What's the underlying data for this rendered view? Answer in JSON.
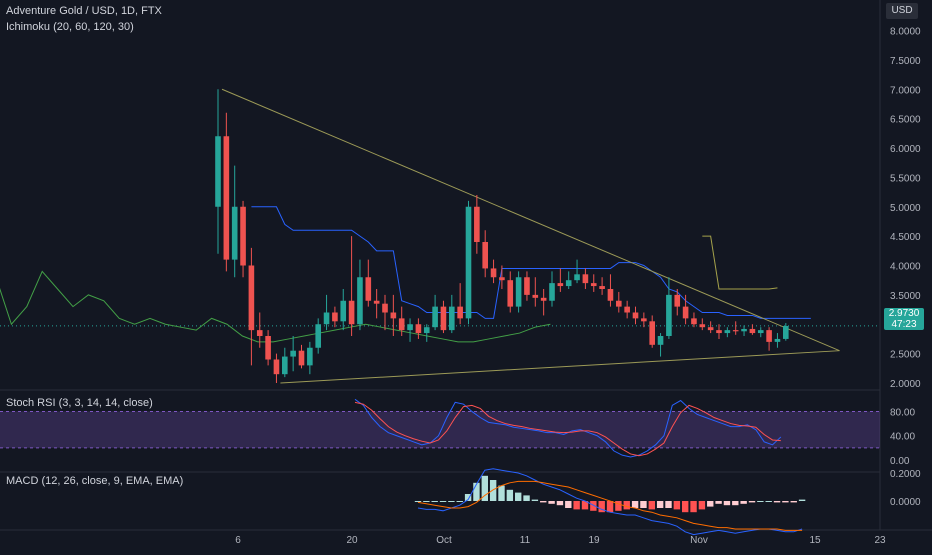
{
  "header": {
    "symbol_title": "Adventure Gold / USD, 1D, FTX",
    "indicator": "Ichimoku (20, 60, 120, 30)",
    "currency": "USD"
  },
  "price_badge": {
    "price": "2.9730",
    "countdown": "47:23"
  },
  "colors": {
    "background": "#131722",
    "up": "#26a69a",
    "down": "#ef5350",
    "ichimoku_conversion": "#2962ff",
    "ichimoku_lagging": "#43a047",
    "ichimoku_span": "#a5a24b",
    "trendline": "#9c9a57",
    "stoch_k": "#2962ff",
    "stoch_d": "#ff5252",
    "stoch_band": "#7e57c2",
    "macd_line": "#2962ff",
    "signal_line": "#ff6d00",
    "hist_up_strong": "#b2dfdb",
    "hist_down_strong": "#ff5252",
    "hist_down_weak": "#ffcdd2"
  },
  "chart_data": [
    {
      "type": "candlestick",
      "title": "Adventure Gold / USD, 1D, FTX",
      "y_axis_label": "USD",
      "y_ticks": [
        "8.0000",
        "7.5000",
        "7.0000",
        "6.5000",
        "6.0000",
        "5.5000",
        "5.0000",
        "4.5000",
        "4.0000",
        "3.5000",
        "3.0000",
        "2.5000",
        "2.0000"
      ],
      "x_ticks": [
        "6",
        "20",
        "Oct",
        "11",
        "19",
        "Nov",
        "15",
        "23"
      ],
      "ylim": [
        1.75,
        8.1
      ],
      "candles": [
        {
          "date": "Sep 5",
          "o": 5.0,
          "h": 7.0,
          "l": 4.2,
          "c": 6.2
        },
        {
          "date": "Sep 6",
          "o": 6.2,
          "h": 6.6,
          "l": 3.9,
          "c": 4.1
        },
        {
          "date": "Sep 7",
          "o": 4.1,
          "h": 5.7,
          "l": 3.8,
          "c": 5.0
        },
        {
          "date": "Sep 8",
          "o": 5.0,
          "h": 5.1,
          "l": 3.8,
          "c": 4.0
        },
        {
          "date": "Sep 9",
          "o": 4.0,
          "h": 4.3,
          "l": 2.3,
          "c": 2.9
        },
        {
          "date": "Sep 10",
          "o": 2.9,
          "h": 3.2,
          "l": 2.6,
          "c": 2.8
        },
        {
          "date": "Sep 11",
          "o": 2.8,
          "h": 2.9,
          "l": 2.3,
          "c": 2.4
        },
        {
          "date": "Sep 12",
          "o": 2.4,
          "h": 2.5,
          "l": 2.0,
          "c": 2.15
        },
        {
          "date": "Sep 13",
          "o": 2.15,
          "h": 2.6,
          "l": 2.1,
          "c": 2.45
        },
        {
          "date": "Sep 14",
          "o": 2.45,
          "h": 2.8,
          "l": 2.2,
          "c": 2.55
        },
        {
          "date": "Sep 15",
          "o": 2.55,
          "h": 2.65,
          "l": 2.25,
          "c": 2.3
        },
        {
          "date": "Sep 16",
          "o": 2.3,
          "h": 2.7,
          "l": 2.15,
          "c": 2.6
        },
        {
          "date": "Sep 17",
          "o": 2.6,
          "h": 3.1,
          "l": 2.5,
          "c": 3.0
        },
        {
          "date": "Sep 18",
          "o": 3.0,
          "h": 3.5,
          "l": 2.9,
          "c": 3.2
        },
        {
          "date": "Sep 19",
          "o": 3.2,
          "h": 3.3,
          "l": 2.95,
          "c": 3.05
        },
        {
          "date": "Sep 20",
          "o": 3.05,
          "h": 3.6,
          "l": 2.9,
          "c": 3.4
        },
        {
          "date": "Sep 21",
          "o": 3.4,
          "h": 4.5,
          "l": 2.8,
          "c": 3.0
        },
        {
          "date": "Sep 22",
          "o": 3.0,
          "h": 4.1,
          "l": 2.9,
          "c": 3.8
        },
        {
          "date": "Sep 23",
          "o": 3.8,
          "h": 4.1,
          "l": 3.3,
          "c": 3.4
        },
        {
          "date": "Sep 24",
          "o": 3.4,
          "h": 3.6,
          "l": 3.1,
          "c": 3.35
        },
        {
          "date": "Sep 25",
          "o": 3.35,
          "h": 3.5,
          "l": 2.9,
          "c": 3.2
        },
        {
          "date": "Sep 26",
          "o": 3.2,
          "h": 3.5,
          "l": 2.8,
          "c": 3.1
        },
        {
          "date": "Sep 27",
          "o": 3.1,
          "h": 3.3,
          "l": 2.8,
          "c": 2.9
        },
        {
          "date": "Sep 28",
          "o": 2.9,
          "h": 3.1,
          "l": 2.7,
          "c": 3.0
        },
        {
          "date": "Sep 29",
          "o": 3.0,
          "h": 3.1,
          "l": 2.75,
          "c": 2.85
        },
        {
          "date": "Sep 30",
          "o": 2.85,
          "h": 3.0,
          "l": 2.7,
          "c": 2.95
        },
        {
          "date": "Oct 1",
          "o": 2.95,
          "h": 3.5,
          "l": 2.9,
          "c": 3.3
        },
        {
          "date": "Oct 2",
          "o": 3.3,
          "h": 3.4,
          "l": 2.85,
          "c": 2.9
        },
        {
          "date": "Oct 3",
          "o": 2.9,
          "h": 3.5,
          "l": 2.85,
          "c": 3.3
        },
        {
          "date": "Oct 4",
          "o": 3.3,
          "h": 3.7,
          "l": 3.0,
          "c": 3.1
        },
        {
          "date": "Oct 5",
          "o": 3.1,
          "h": 5.1,
          "l": 3.0,
          "c": 5.0
        },
        {
          "date": "Oct 6",
          "o": 5.0,
          "h": 5.2,
          "l": 4.2,
          "c": 4.4
        },
        {
          "date": "Oct 7",
          "o": 4.4,
          "h": 4.6,
          "l": 3.8,
          "c": 3.95
        },
        {
          "date": "Oct 8",
          "o": 3.95,
          "h": 4.1,
          "l": 3.7,
          "c": 3.8
        },
        {
          "date": "Oct 9",
          "o": 3.8,
          "h": 4.0,
          "l": 3.6,
          "c": 3.75
        },
        {
          "date": "Oct 10",
          "o": 3.75,
          "h": 3.9,
          "l": 3.2,
          "c": 3.3
        },
        {
          "date": "Oct 11",
          "o": 3.3,
          "h": 3.9,
          "l": 3.2,
          "c": 3.8
        },
        {
          "date": "Oct 12",
          "o": 3.8,
          "h": 3.9,
          "l": 3.4,
          "c": 3.5
        },
        {
          "date": "Oct 13",
          "o": 3.5,
          "h": 3.8,
          "l": 3.3,
          "c": 3.45
        },
        {
          "date": "Oct 14",
          "o": 3.45,
          "h": 3.6,
          "l": 3.15,
          "c": 3.4
        },
        {
          "date": "Oct 15",
          "o": 3.4,
          "h": 3.9,
          "l": 3.3,
          "c": 3.7
        },
        {
          "date": "Oct 16",
          "o": 3.7,
          "h": 3.95,
          "l": 3.55,
          "c": 3.65
        },
        {
          "date": "Oct 17",
          "o": 3.65,
          "h": 3.9,
          "l": 3.6,
          "c": 3.75
        },
        {
          "date": "Oct 18",
          "o": 3.75,
          "h": 4.1,
          "l": 3.7,
          "c": 3.85
        },
        {
          "date": "Oct 19",
          "o": 3.85,
          "h": 3.95,
          "l": 3.6,
          "c": 3.7
        },
        {
          "date": "Oct 20",
          "o": 3.7,
          "h": 3.85,
          "l": 3.55,
          "c": 3.65
        },
        {
          "date": "Oct 21",
          "o": 3.65,
          "h": 3.8,
          "l": 3.5,
          "c": 3.6
        },
        {
          "date": "Oct 22",
          "o": 3.6,
          "h": 3.85,
          "l": 3.3,
          "c": 3.4
        },
        {
          "date": "Oct 23",
          "o": 3.4,
          "h": 3.55,
          "l": 3.2,
          "c": 3.3
        },
        {
          "date": "Oct 24",
          "o": 3.3,
          "h": 3.4,
          "l": 3.1,
          "c": 3.2
        },
        {
          "date": "Oct 25",
          "o": 3.2,
          "h": 3.3,
          "l": 3.0,
          "c": 3.1
        },
        {
          "date": "Oct 26",
          "o": 3.1,
          "h": 3.2,
          "l": 2.95,
          "c": 3.05
        },
        {
          "date": "Oct 27",
          "o": 3.05,
          "h": 3.15,
          "l": 2.6,
          "c": 2.65
        },
        {
          "date": "Oct 28",
          "o": 2.65,
          "h": 2.85,
          "l": 2.45,
          "c": 2.8
        },
        {
          "date": "Oct 29",
          "o": 2.8,
          "h": 3.8,
          "l": 2.75,
          "c": 3.5
        },
        {
          "date": "Oct 30",
          "o": 3.5,
          "h": 3.6,
          "l": 3.15,
          "c": 3.3
        },
        {
          "date": "Oct 31",
          "o": 3.3,
          "h": 3.5,
          "l": 3.0,
          "c": 3.1
        },
        {
          "date": "Nov 1",
          "o": 3.1,
          "h": 3.2,
          "l": 2.95,
          "c": 3.0
        },
        {
          "date": "Nov 2",
          "o": 3.0,
          "h": 3.1,
          "l": 2.9,
          "c": 2.95
        },
        {
          "date": "Nov 3",
          "o": 2.95,
          "h": 3.05,
          "l": 2.85,
          "c": 2.9
        },
        {
          "date": "Nov 4",
          "o": 2.9,
          "h": 3.0,
          "l": 2.75,
          "c": 2.85
        },
        {
          "date": "Nov 5",
          "o": 2.85,
          "h": 2.95,
          "l": 2.78,
          "c": 2.9
        },
        {
          "date": "Nov 6",
          "o": 2.9,
          "h": 3.05,
          "l": 2.82,
          "c": 2.88
        },
        {
          "date": "Nov 7",
          "o": 2.88,
          "h": 2.98,
          "l": 2.8,
          "c": 2.92
        },
        {
          "date": "Nov 8",
          "o": 2.92,
          "h": 3.0,
          "l": 2.82,
          "c": 2.85
        },
        {
          "date": "Nov 9",
          "o": 2.85,
          "h": 2.95,
          "l": 2.78,
          "c": 2.9
        },
        {
          "date": "Nov 10",
          "o": 2.9,
          "h": 2.95,
          "l": 2.55,
          "c": 2.7
        },
        {
          "date": "Nov 11",
          "o": 2.7,
          "h": 2.85,
          "l": 2.6,
          "c": 2.75
        },
        {
          "date": "Nov 12",
          "o": 2.75,
          "h": 3.02,
          "l": 2.72,
          "c": 2.97
        }
      ],
      "ichimoku": {
        "conversion": [
          5.0,
          5.0,
          5.0,
          5.0,
          4.7,
          4.6,
          4.6,
          4.6,
          4.6,
          4.6,
          4.6,
          4.6,
          4.6,
          4.5,
          4.4,
          4.25,
          4.25,
          4.25,
          3.4,
          3.35,
          3.3,
          3.2,
          3.2,
          3.2,
          3.2,
          3.2,
          3.2,
          3.2,
          3.1,
          3.1,
          3.95,
          3.95,
          3.95,
          3.95,
          3.95,
          3.95,
          3.95,
          3.95,
          3.95,
          3.95,
          3.95,
          3.95,
          3.95,
          3.95,
          4.05,
          4.05,
          4.05,
          4.0,
          3.9,
          3.8,
          3.6,
          3.55,
          3.4,
          3.3,
          3.2,
          3.2,
          3.2,
          3.15,
          3.15,
          3.15,
          3.15,
          3.1,
          3.1,
          3.1,
          3.1,
          3.1,
          3.1,
          3.1
        ],
        "span_a_future": [
          4.5,
          4.5,
          3.6,
          3.6,
          3.6,
          3.6,
          3.6,
          3.6,
          3.6,
          3.62
        ],
        "lagging": [
          3.8,
          3.0,
          3.3,
          3.9,
          3.6,
          3.3,
          3.5,
          3.4,
          3.1,
          3.0,
          3.1,
          3.0,
          2.95,
          2.9,
          3.1,
          3.0,
          2.8,
          2.7,
          2.7,
          2.75,
          2.8,
          2.85,
          2.9,
          2.95,
          3.0,
          2.95,
          2.9,
          2.85,
          2.8,
          2.75,
          2.7,
          2.7,
          2.75,
          2.8,
          2.85,
          2.95,
          3.0
        ]
      },
      "trendlines": [
        {
          "from": {
            "date": "Sep 5",
            "price": 7.0
          },
          "to": {
            "date": "Nov 17",
            "price": 2.55
          }
        },
        {
          "from": {
            "date": "Sep 12",
            "price": 2.0
          },
          "to": {
            "date": "Nov 17",
            "price": 2.55
          }
        }
      ],
      "last_price": 2.973
    },
    {
      "type": "line",
      "title": "Stoch RSI (3, 3, 14, 14, close)",
      "y_ticks": [
        "80.00",
        "40.00",
        "0.00"
      ],
      "band": [
        20,
        80
      ],
      "series": [
        {
          "name": "K",
          "values": [
            100,
            90,
            70,
            55,
            45,
            40,
            35,
            30,
            25,
            28,
            40,
            70,
            95,
            92,
            80,
            70,
            62,
            60,
            58,
            54,
            52,
            50,
            48,
            45,
            45,
            42,
            48,
            50,
            45,
            40,
            30,
            15,
            8,
            5,
            8,
            15,
            25,
            40,
            90,
            98,
            85,
            75,
            70,
            65,
            60,
            55,
            55,
            58,
            50,
            30,
            25,
            38
          ]
        },
        {
          "name": "D",
          "values": [
            95,
            92,
            82,
            68,
            55,
            46,
            40,
            35,
            31,
            28,
            33,
            48,
            70,
            88,
            90,
            85,
            72,
            65,
            60,
            57,
            55,
            52,
            50,
            48,
            46,
            45,
            46,
            48,
            48,
            45,
            38,
            28,
            18,
            10,
            7,
            10,
            18,
            28,
            55,
            78,
            90,
            85,
            78,
            70,
            65,
            60,
            57,
            56,
            54,
            42,
            33,
            32
          ]
        }
      ]
    },
    {
      "type": "histogram",
      "title": "MACD (12, 26, close, 9, EMA, EMA)",
      "y_ticks": [
        "0.2000",
        "0.0000"
      ],
      "macd": [
        -0.05,
        -0.06,
        -0.06,
        -0.07,
        -0.05,
        -0.03,
        0.01,
        0.12,
        0.22,
        0.23,
        0.22,
        0.21,
        0.2,
        0.18,
        0.15,
        0.12,
        0.1,
        0.08,
        0.05,
        0.02,
        0.0,
        -0.03,
        -0.06,
        -0.08,
        -0.09,
        -0.1,
        -0.1,
        -0.12,
        -0.14,
        -0.15,
        -0.16,
        -0.18,
        -0.22,
        -0.24,
        -0.23,
        -0.22,
        -0.21,
        -0.22,
        -0.23,
        -0.22,
        -0.21,
        -0.2,
        -0.2,
        -0.21,
        -0.22,
        -0.22,
        -0.2
      ],
      "signal": [
        -0.01,
        -0.02,
        -0.03,
        -0.04,
        -0.05,
        -0.05,
        -0.04,
        -0.01,
        0.04,
        0.08,
        0.11,
        0.13,
        0.14,
        0.14,
        0.14,
        0.13,
        0.12,
        0.11,
        0.1,
        0.08,
        0.06,
        0.04,
        0.02,
        0.0,
        -0.02,
        -0.04,
        -0.05,
        -0.07,
        -0.08,
        -0.1,
        -0.11,
        -0.12,
        -0.14,
        -0.16,
        -0.17,
        -0.18,
        -0.19,
        -0.19,
        -0.2,
        -0.2,
        -0.2,
        -0.2,
        -0.2,
        -0.2,
        -0.21,
        -0.21,
        -0.21
      ],
      "histogram": [
        0,
        0,
        0,
        0,
        0,
        0,
        0.05,
        0.13,
        0.18,
        0.15,
        0.11,
        0.08,
        0.06,
        0.04,
        0.01,
        -0.01,
        -0.02,
        -0.03,
        -0.05,
        -0.06,
        -0.06,
        -0.07,
        -0.08,
        -0.08,
        -0.07,
        -0.06,
        -0.05,
        -0.05,
        -0.06,
        -0.05,
        -0.05,
        -0.06,
        -0.08,
        -0.08,
        -0.06,
        -0.04,
        -0.02,
        -0.03,
        -0.03,
        -0.02,
        -0.01,
        0.0,
        0.0,
        -0.01,
        -0.01,
        -0.01,
        0.01
      ]
    }
  ]
}
